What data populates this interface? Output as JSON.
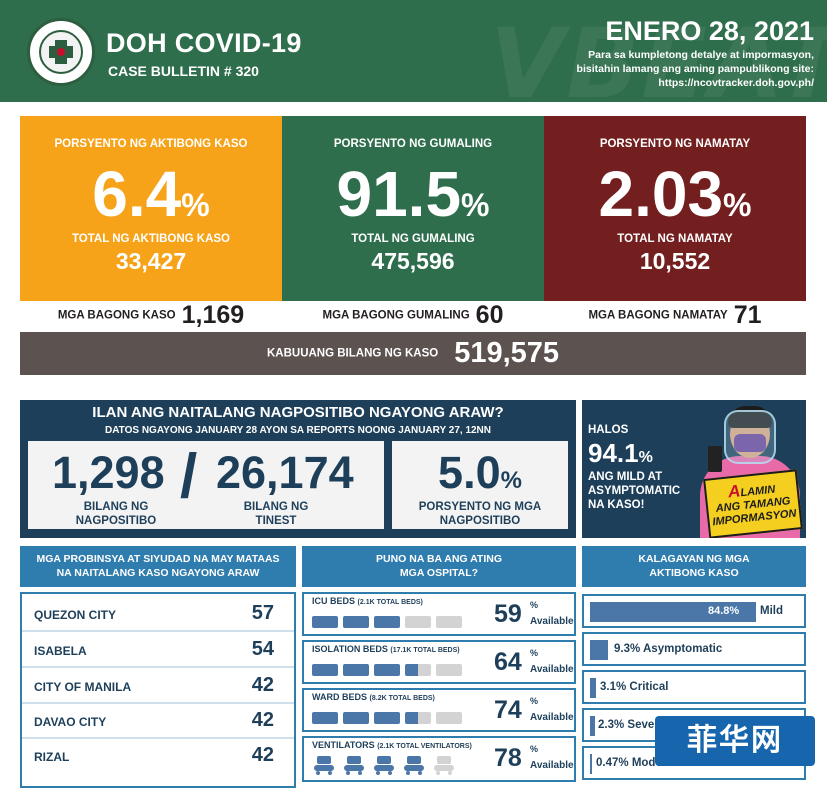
{
  "header": {
    "title": "DOH COVID-19",
    "subtitle": "CASE BULLETIN # 320",
    "date": "ENERO 28, 2021",
    "info_line1": "Para sa kumpletong detalye at impormasyon,",
    "info_line2": "bisitahin lamang ang aming pampublikong site:",
    "info_line3": "https://ncovtracker.doh.gov.ph/",
    "background_text": "VBEAT"
  },
  "stats": {
    "active": {
      "label": "PORSYENTO NG AKTIBONG KASO",
      "percent": "6.4",
      "pct_sign": "%",
      "total_label": "TOTAL NG AKTIBONG KASO",
      "total": "33,427",
      "new_label": "MGA BAGONG KASO",
      "new_value": "1,169"
    },
    "recovered": {
      "label": "PORSYENTO NG GUMALING",
      "percent": "91.5",
      "pct_sign": "%",
      "total_label": "TOTAL NG GUMALING",
      "total": "475,596",
      "new_label": "MGA BAGONG GUMALING",
      "new_value": "60"
    },
    "deaths": {
      "label": "PORSYENTO NG NAMATAY",
      "percent": "2.03",
      "pct_sign": "%",
      "total_label": "TOTAL NG NAMATAY",
      "total": "10,552",
      "new_label": "MGA BAGONG NAMATAY",
      "new_value": "71"
    },
    "total_label": "KABUUANG BILANG NG KASO",
    "total_value": "519,575"
  },
  "positivity": {
    "title": "ILAN ANG NAITALANG NAGPOSITIBO NGAYONG ARAW?",
    "subtitle": "DATOS NGAYONG JANUARY 28 AYON SA REPORTS NOONG JANUARY 27, 12NN",
    "positive_value": "1,298",
    "positive_label_1": "BILANG NG",
    "positive_label_2": "NAGPOSITIBO",
    "slash": "/",
    "tested_value": "26,174",
    "tested_label_1": "BILANG NG",
    "tested_label_2": "TINEST",
    "rate_value": "5.0",
    "rate_sign": "%",
    "rate_label_1": "PORSYENTO NG MGA",
    "rate_label_2": "NAGPOSITIBO"
  },
  "promo": {
    "line1": "HALOS",
    "value": "94.1",
    "pct_sign": "%",
    "line2": "ANG MILD AT",
    "line3": "ASYMPTOMATIC",
    "line4": "NA KASO!",
    "badge_a": "A",
    "badge_line1": "LAMIN",
    "badge_line2": "ANG TAMANG",
    "badge_line3": "IMPORMASYON"
  },
  "provinces": {
    "header_line1": "MGA PROBINSYA AT SIYUDAD NA MAY MATAAS",
    "header_line2": "NA NAITALANG KASO NGAYONG ARAW",
    "items": [
      {
        "name": "QUEZON CITY",
        "value": "57"
      },
      {
        "name": "ISABELA",
        "value": "54"
      },
      {
        "name": "CITY OF MANILA",
        "value": "42"
      },
      {
        "name": "DAVAO CITY",
        "value": "42"
      },
      {
        "name": "RIZAL",
        "value": "42"
      }
    ]
  },
  "hospitals": {
    "header_line1": "PUNO NA BA ANG ATING",
    "header_line2": "MGA OSPITAL?",
    "available_label": "Available",
    "pct_sign": "%",
    "items": [
      {
        "label": "ICU BEDS",
        "sub": "(2.1K TOTAL BEDS)",
        "value": "59"
      },
      {
        "label": "ISOLATION BEDS",
        "sub": "(17.1K TOTAL BEDS)",
        "value": "64"
      },
      {
        "label": "WARD BEDS",
        "sub": "(8.2K TOTAL BEDS)",
        "value": "74"
      },
      {
        "label": "VENTILATORS",
        "sub": "(2.1K TOTAL VENTILATORS)",
        "value": "78"
      }
    ]
  },
  "active_status": {
    "header_line1": "KALAGAYAN NG MGA",
    "header_line2": "AKTIBONG KASO",
    "items": [
      {
        "value": "84.8%",
        "label": "Mild",
        "fraction": 0.848
      },
      {
        "value": "9.3%",
        "label": "Asymptomatic",
        "fraction": 0.093
      },
      {
        "value": "3.1%",
        "label": "Critical",
        "fraction": 0.031
      },
      {
        "value": "2.3%",
        "label": "Severe",
        "fraction": 0.023
      },
      {
        "value": "0.47%",
        "label": "Moderate",
        "fraction": 0.0047
      }
    ]
  },
  "watermark": "菲华网",
  "colors": {
    "header_green": "#2f6e4c",
    "active_orange": "#f7a319",
    "recovered_green": "#2f6e4c",
    "death_maroon": "#731f1f",
    "total_gray": "#5c5350",
    "navy": "#1e3f5a",
    "accent_blue": "#2f7cae",
    "bar_blue": "#4a76a8"
  }
}
